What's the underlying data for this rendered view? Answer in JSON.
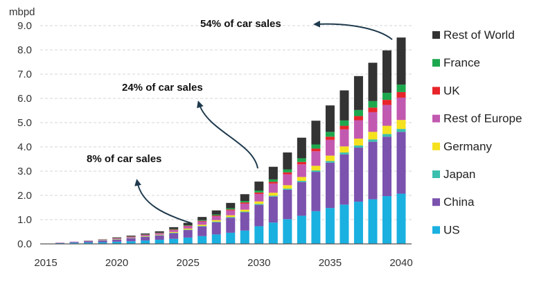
{
  "chart_data": {
    "type": "bar",
    "stacked": true,
    "unit_label": "mbpd",
    "ylim": [
      0,
      9
    ],
    "yticks": [
      "0.0",
      "1.0",
      "2.0",
      "3.0",
      "4.0",
      "5.0",
      "6.0",
      "7.0",
      "8.0",
      "9.0"
    ],
    "xticks": [
      "2015",
      "2020",
      "2025",
      "2030",
      "2035",
      "2040"
    ],
    "grid": true,
    "legend_position": "right",
    "categories": [
      2016,
      2017,
      2018,
      2019,
      2020,
      2021,
      2022,
      2023,
      2024,
      2025,
      2026,
      2027,
      2028,
      2029,
      2030,
      2031,
      2032,
      2033,
      2034,
      2035,
      2036,
      2037,
      2038,
      2039,
      2040
    ],
    "series": [
      {
        "name": "US",
        "color": "#1ab0e0",
        "values": [
          0.03,
          0.05,
          0.06,
          0.07,
          0.09,
          0.11,
          0.14,
          0.17,
          0.21,
          0.26,
          0.32,
          0.39,
          0.46,
          0.55,
          0.73,
          0.88,
          1.02,
          1.16,
          1.35,
          1.48,
          1.62,
          1.74,
          1.84,
          1.97,
          2.07
        ]
      },
      {
        "name": "China",
        "color": "#7b52ae",
        "values": [
          0.01,
          0.03,
          0.05,
          0.07,
          0.09,
          0.12,
          0.15,
          0.18,
          0.23,
          0.31,
          0.4,
          0.5,
          0.62,
          0.75,
          0.88,
          1.07,
          1.21,
          1.39,
          1.62,
          1.87,
          2.07,
          2.23,
          2.37,
          2.45,
          2.55
        ]
      },
      {
        "name": "Japan",
        "color": "#3cbfae",
        "values": [
          0.0,
          0.0,
          0.0,
          0.01,
          0.01,
          0.01,
          0.01,
          0.01,
          0.02,
          0.02,
          0.02,
          0.03,
          0.03,
          0.03,
          0.04,
          0.04,
          0.05,
          0.05,
          0.06,
          0.07,
          0.08,
          0.09,
          0.1,
          0.11,
          0.12
        ]
      },
      {
        "name": "Germany",
        "color": "#f5e11e",
        "values": [
          0.0,
          0.0,
          0.0,
          0.01,
          0.01,
          0.01,
          0.02,
          0.02,
          0.03,
          0.04,
          0.05,
          0.06,
          0.07,
          0.08,
          0.1,
          0.12,
          0.14,
          0.16,
          0.19,
          0.22,
          0.25,
          0.28,
          0.31,
          0.34,
          0.37
        ]
      },
      {
        "name": "Rest of Europe",
        "color": "#c259b0",
        "values": [
          0.01,
          0.01,
          0.01,
          0.02,
          0.03,
          0.04,
          0.05,
          0.06,
          0.08,
          0.1,
          0.13,
          0.16,
          0.2,
          0.25,
          0.31,
          0.38,
          0.45,
          0.52,
          0.6,
          0.65,
          0.7,
          0.76,
          0.81,
          0.86,
          0.92
        ]
      },
      {
        "name": "UK",
        "color": "#e8242a",
        "values": [
          0.0,
          0.0,
          0.0,
          0.0,
          0.01,
          0.01,
          0.01,
          0.01,
          0.02,
          0.02,
          0.03,
          0.03,
          0.04,
          0.05,
          0.06,
          0.07,
          0.08,
          0.1,
          0.11,
          0.13,
          0.15,
          0.17,
          0.19,
          0.21,
          0.23
        ]
      },
      {
        "name": "France",
        "color": "#1ea84e",
        "values": [
          0.0,
          0.0,
          0.0,
          0.0,
          0.01,
          0.01,
          0.01,
          0.01,
          0.02,
          0.02,
          0.03,
          0.04,
          0.05,
          0.06,
          0.08,
          0.1,
          0.12,
          0.15,
          0.17,
          0.2,
          0.22,
          0.25,
          0.27,
          0.29,
          0.31
        ]
      },
      {
        "name": "Rest of World",
        "color": "#333333",
        "values": [
          0.0,
          0.0,
          0.01,
          0.01,
          0.02,
          0.03,
          0.04,
          0.06,
          0.08,
          0.1,
          0.13,
          0.17,
          0.22,
          0.28,
          0.37,
          0.52,
          0.7,
          0.85,
          0.98,
          1.09,
          1.24,
          1.4,
          1.58,
          1.75,
          1.94
        ]
      }
    ],
    "annotations": [
      {
        "text": "8% of car sales",
        "points_to_year": 2025
      },
      {
        "text": "24% of car sales",
        "points_to_year": 2030
      },
      {
        "text": "54% of car sales",
        "points_to_year": 2040
      }
    ]
  }
}
